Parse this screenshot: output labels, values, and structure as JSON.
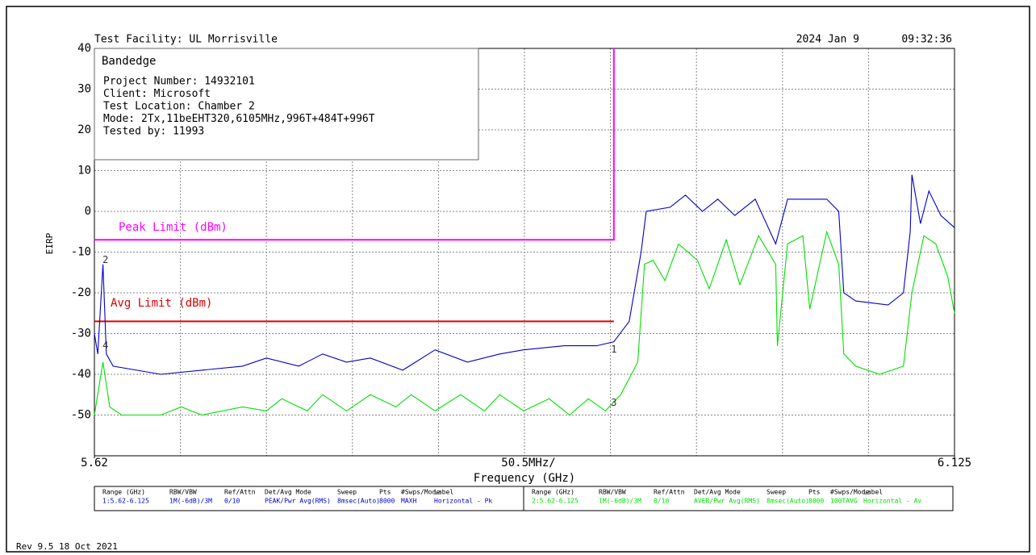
{
  "header": {
    "facility": "Test Facility:  UL Morrisville",
    "date": "2024 Jan 9",
    "time": "09:32:36"
  },
  "info_box": {
    "title": "Bandedge",
    "lines": [
      "Project Number: 14932101",
      "Client: Microsoft",
      "Test Location: Chamber 2",
      "Mode: 2Tx,11beEHT320,6105MHz,996T+484T+996T",
      "Tested by: 11993"
    ]
  },
  "chart_data": {
    "type": "line",
    "xlabel": "Frequency (GHz)",
    "ylabel": "EIRP",
    "span_label": "50.5MHz/",
    "xlim": [
      5.62,
      6.125
    ],
    "xticks": [
      5.62,
      6.125
    ],
    "ylim": [
      -60,
      40
    ],
    "yticks": [
      40,
      30,
      20,
      10,
      0,
      -10,
      -20,
      -30,
      -40,
      -50
    ],
    "grid": true,
    "series": [
      {
        "name": "Peak Limit (dBm)",
        "color": "#ff00ff",
        "x": [
          5.62,
          5.925,
          5.925
        ],
        "values": [
          -7,
          -7,
          40
        ]
      },
      {
        "name": "Avg Limit (dBm)",
        "color": "#e00000",
        "x": [
          5.62,
          5.925
        ],
        "values": [
          -27,
          -27
        ]
      },
      {
        "name": "Horizontal - Pk",
        "color": "#0000cc",
        "x": [
          5.62,
          5.622,
          5.625,
          5.627,
          5.631,
          5.659,
          5.683,
          5.707,
          5.721,
          5.74,
          5.754,
          5.768,
          5.782,
          5.801,
          5.82,
          5.839,
          5.858,
          5.872,
          5.896,
          5.915,
          5.925,
          5.934,
          5.941,
          5.944,
          5.958,
          5.967,
          5.977,
          5.986,
          5.996,
          6.008,
          6.02,
          6.027,
          6.038,
          6.05,
          6.057,
          6.06,
          6.067,
          6.086,
          6.095,
          6.099,
          6.1,
          6.105,
          6.11,
          6.117,
          6.125
        ],
        "values": [
          -30,
          -35,
          -13,
          -35,
          -38,
          -40,
          -39,
          -38,
          -36,
          -38,
          -35,
          -37,
          -36,
          -39,
          -34,
          -37,
          -35,
          -34,
          -33,
          -33,
          -32,
          -27,
          -10,
          0,
          1,
          4,
          0,
          3,
          -1,
          3,
          -8,
          3,
          3,
          3,
          0,
          -20,
          -22,
          -23,
          -20,
          -5,
          9,
          -3,
          5,
          -1,
          -4
        ]
      },
      {
        "name": "Horizontal - Av",
        "color": "#00e000",
        "x": [
          5.62,
          5.625,
          5.629,
          5.636,
          5.659,
          5.671,
          5.683,
          5.707,
          5.721,
          5.73,
          5.745,
          5.754,
          5.768,
          5.782,
          5.797,
          5.806,
          5.82,
          5.835,
          5.849,
          5.858,
          5.872,
          5.887,
          5.899,
          5.91,
          5.92,
          5.929,
          5.939,
          5.943,
          5.948,
          5.955,
          5.963,
          5.974,
          5.981,
          5.991,
          5.999,
          6.01,
          6.02,
          6.021,
          6.027,
          6.036,
          6.04,
          6.05,
          6.057,
          6.06,
          6.067,
          6.081,
          6.095,
          6.1,
          6.107,
          6.114,
          6.121,
          6.125
        ],
        "values": [
          -50,
          -37,
          -48,
          -50,
          -50,
          -48,
          -50,
          -48,
          -49,
          -46,
          -49,
          -45,
          -49,
          -45,
          -48,
          -45,
          -49,
          -45,
          -49,
          -45,
          -49,
          -46,
          -50,
          -46,
          -49,
          -45,
          -37,
          -13,
          -12,
          -17,
          -8,
          -12,
          -19,
          -7,
          -18,
          -6,
          -13,
          -33,
          -8,
          -6,
          -24,
          -5,
          -13,
          -35,
          -38,
          -40,
          -38,
          -20,
          -6,
          -8,
          -16,
          -25
        ]
      }
    ],
    "markers": [
      {
        "label": "2",
        "x": 5.6265,
        "y": -12
      },
      {
        "label": "4",
        "x": 5.6265,
        "y": -33
      },
      {
        "label": "1",
        "x": 5.925,
        "y": -34
      },
      {
        "label": "3",
        "x": 5.925,
        "y": -47
      }
    ]
  },
  "settings_table": {
    "headers": [
      "Range (GHz)",
      "RBW/VBW",
      "Ref/Attn",
      "Det/Avg Mode",
      "Sweep",
      "Pts",
      "#Swps/Mode",
      "Label"
    ],
    "rows": [
      [
        "1:5.62-6.125",
        "1M(-6dB)/3M",
        "0/10",
        "PEAK/Pwr Avg(RMS)",
        "8msec(Auto)",
        8000,
        "MAXH",
        "Horizontal - Pk"
      ],
      [
        "2:5.62-6.125",
        "1M(-6dB)/3M",
        "0/10",
        "AVER/Pwr Avg(RMS)",
        "8msec(Auto)",
        8000,
        "100TAVG",
        "Horizontal - Av"
      ]
    ]
  },
  "footer": "Rev 9.5 18 Oct 2021"
}
